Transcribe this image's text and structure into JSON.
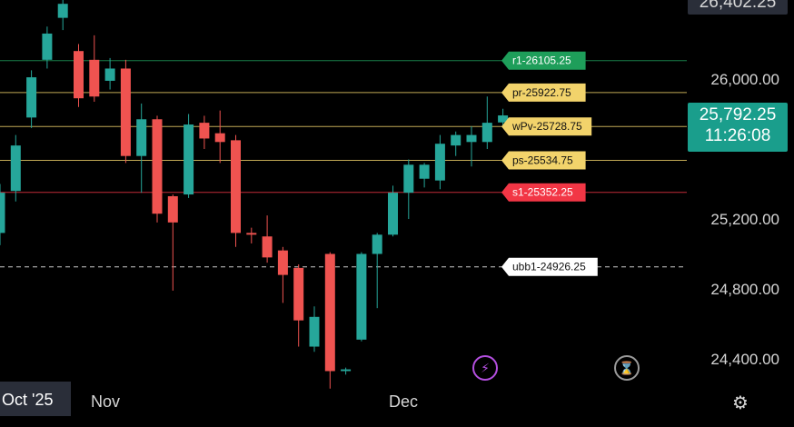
{
  "chart_data": {
    "type": "candlestick",
    "ylim": [
      24200,
      26450
    ],
    "y_ticks": [
      "26,000.00",
      "25,200.00",
      "24,800.00",
      "24,400.00"
    ],
    "y_tick_values": [
      26000,
      25200,
      24800,
      24400
    ],
    "top_partial_label": "26,402.25",
    "x_labels": [
      "Oct '25",
      "Nov",
      "Dec"
    ],
    "current_price": "25,792.25",
    "countdown": "11:26:08",
    "candles": [
      {
        "o": 25120,
        "c": 25350,
        "h": 25400,
        "l": 25050
      },
      {
        "o": 25360,
        "c": 25620,
        "h": 25680,
        "l": 25300
      },
      {
        "o": 25780,
        "c": 26010,
        "h": 26050,
        "l": 25720
      },
      {
        "o": 26110,
        "c": 26260,
        "h": 26300,
        "l": 26060
      },
      {
        "o": 26350,
        "c": 26430,
        "h": 26520,
        "l": 26280
      },
      {
        "o": 26160,
        "c": 25890,
        "h": 26200,
        "l": 25840
      },
      {
        "o": 26110,
        "c": 25900,
        "h": 26250,
        "l": 25870
      },
      {
        "o": 25990,
        "c": 26060,
        "h": 26120,
        "l": 25940
      },
      {
        "o": 26060,
        "c": 25560,
        "h": 26110,
        "l": 25520
      },
      {
        "o": 25560,
        "c": 25770,
        "h": 25860,
        "l": 25350
      },
      {
        "o": 25770,
        "c": 25230,
        "h": 25790,
        "l": 25180
      },
      {
        "o": 25330,
        "c": 25180,
        "h": 25340,
        "l": 24790
      },
      {
        "o": 25340,
        "c": 25740,
        "h": 25800,
        "l": 25320
      },
      {
        "o": 25750,
        "c": 25660,
        "h": 25790,
        "l": 25600
      },
      {
        "o": 25690,
        "c": 25640,
        "h": 25820,
        "l": 25520
      },
      {
        "o": 25650,
        "c": 25120,
        "h": 25680,
        "l": 25040
      },
      {
        "o": 25120,
        "c": 25110,
        "h": 25150,
        "l": 25060
      },
      {
        "o": 25100,
        "c": 24980,
        "h": 25220,
        "l": 24950
      },
      {
        "o": 25020,
        "c": 24880,
        "h": 25040,
        "l": 24720
      },
      {
        "o": 24920,
        "c": 24620,
        "h": 24940,
        "l": 24470
      },
      {
        "o": 24470,
        "c": 24640,
        "h": 24700,
        "l": 24440
      },
      {
        "o": 25000,
        "c": 24330,
        "h": 25010,
        "l": 24230
      },
      {
        "o": 24330,
        "c": 24340,
        "h": 24350,
        "l": 24310
      },
      {
        "o": 24510,
        "c": 25000,
        "h": 25010,
        "l": 24500
      },
      {
        "o": 25000,
        "c": 25110,
        "h": 25120,
        "l": 24690
      },
      {
        "o": 25110,
        "c": 25350,
        "h": 25390,
        "l": 25100
      },
      {
        "o": 25350,
        "c": 25510,
        "h": 25540,
        "l": 25200
      },
      {
        "o": 25430,
        "c": 25510,
        "h": 25520,
        "l": 25380
      },
      {
        "o": 25420,
        "c": 25630,
        "h": 25680,
        "l": 25370
      },
      {
        "o": 25620,
        "c": 25680,
        "h": 25700,
        "l": 25560
      },
      {
        "o": 25640,
        "c": 25680,
        "h": 25730,
        "l": 25500
      },
      {
        "o": 25640,
        "c": 25750,
        "h": 25900,
        "l": 25600
      },
      {
        "o": 25752,
        "c": 25792,
        "h": 25830,
        "l": 25720
      }
    ],
    "levels": [
      {
        "label": "r1-26105.25",
        "value": 26105.25,
        "color": "#1e9e5a",
        "line": "solid"
      },
      {
        "label": "pr-25922.75",
        "value": 25922.75,
        "color": "#f2d36b",
        "line": "solid"
      },
      {
        "label": "wPv-25728.75",
        "value": 25728.75,
        "color": "#f2d36b",
        "line": "solid"
      },
      {
        "label": "ps-25534.75",
        "value": 25534.75,
        "color": "#f2d36b",
        "line": "solid"
      },
      {
        "label": "s1-25352.25",
        "value": 25352.25,
        "color": "#f23645",
        "line": "solid"
      },
      {
        "label": "ubb1-24926.25",
        "value": 24926.25,
        "color": "#ffffff",
        "line": "dashed"
      }
    ]
  }
}
